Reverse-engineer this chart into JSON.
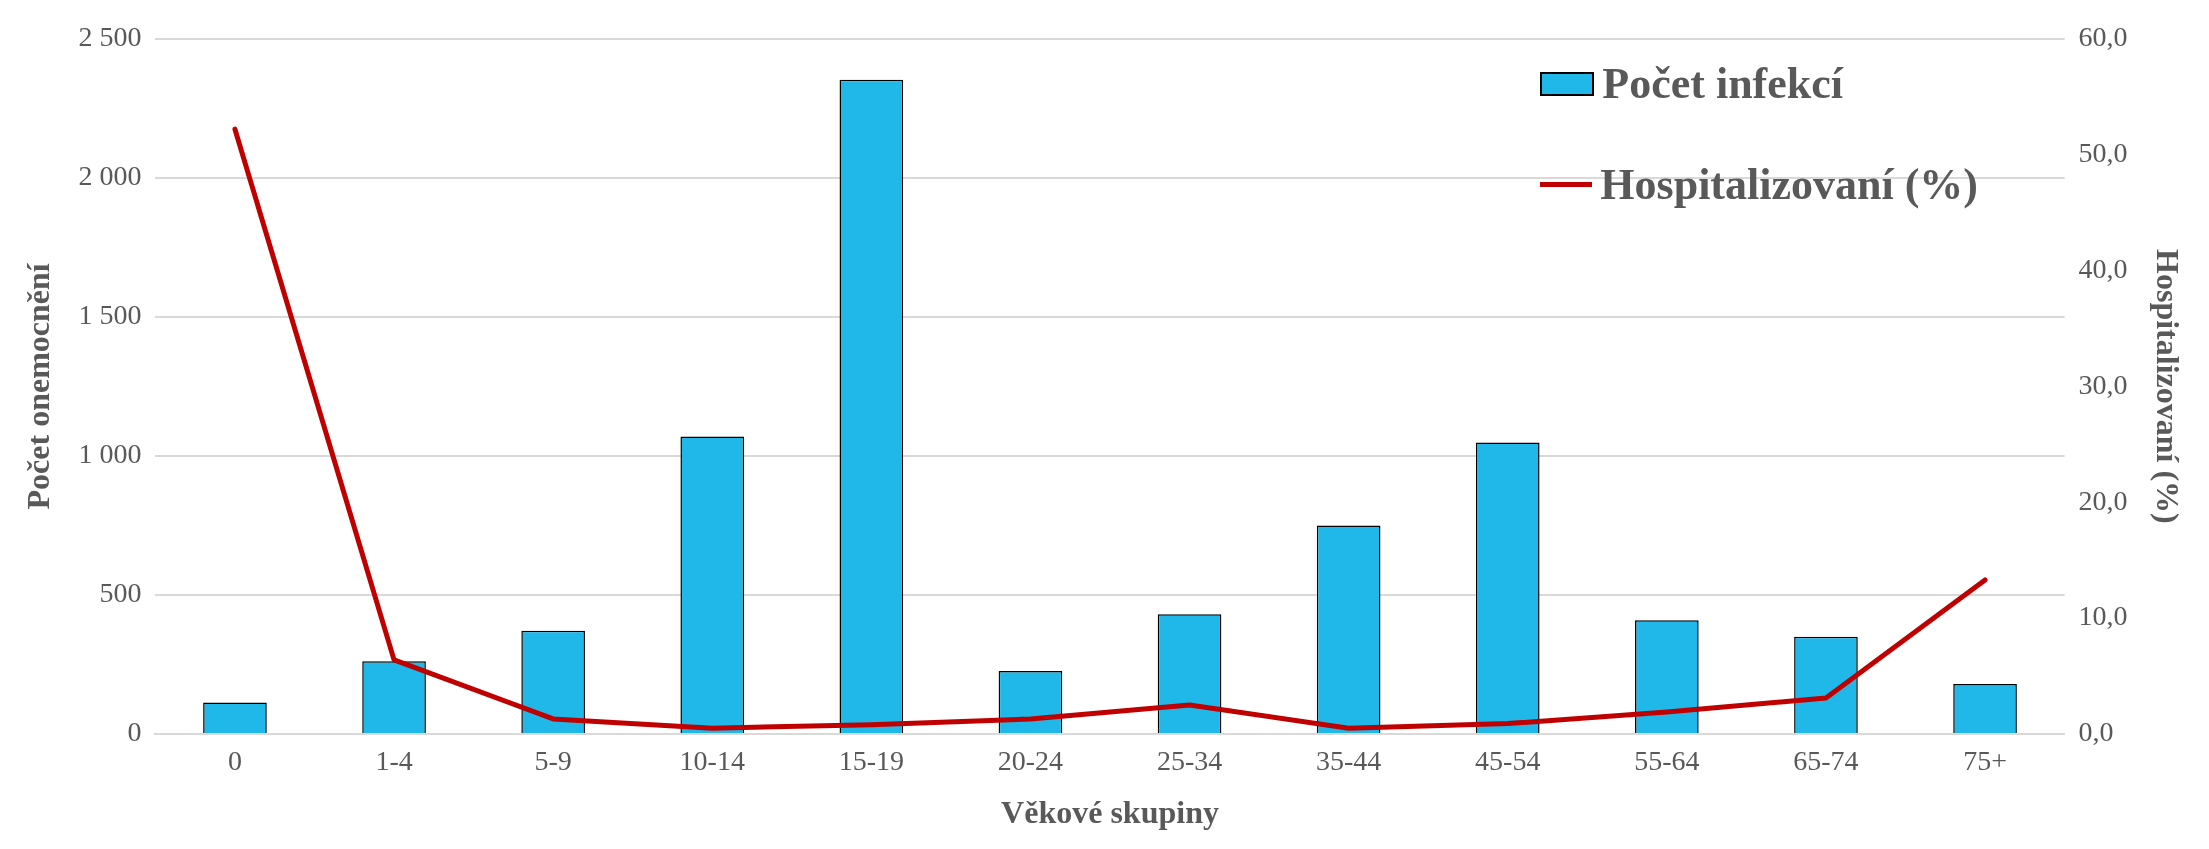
{
  "chart_data": {
    "type": "bar",
    "xlabel": "Věkové skupiny",
    "ylabel": "Počet onemocnění",
    "y2label": "Hospitalizovaní (%)",
    "categories": [
      "0",
      "1-4",
      "5-9",
      "10-14",
      "15-19",
      "20-24",
      "25-34",
      "35-44",
      "45-54",
      "55-64",
      "65-74",
      "75+"
    ],
    "series": [
      {
        "name": "Počet infekcí",
        "color": "#20b8e8",
        "values": [
          113,
          262,
          371,
          1070,
          2353,
          227,
          431,
          750,
          1048,
          409,
          350,
          180
        ]
      },
      {
        "name": "Hospitalizovaní (%)",
        "type": "line",
        "axis": "y2",
        "color": "#c00000",
        "values": [
          52.2,
          6.4,
          1.3,
          0.5,
          0.8,
          1.3,
          2.5,
          0.5,
          0.9,
          1.9,
          3.1,
          13.3
        ]
      }
    ],
    "ylim": [
      0,
      2500
    ],
    "yticks": [
      0,
      500,
      {
        "value": 1000,
        "label": "1 000"
      },
      {
        "value": 1500,
        "label": "1 500"
      },
      {
        "value": 2000,
        "label": "2 000"
      },
      {
        "value": 2500,
        "label": "2 500"
      }
    ],
    "y2lim": [
      0,
      60
    ],
    "y2ticks": [
      {
        "value": 0,
        "label": "0,0"
      },
      {
        "value": 10,
        "label": "10,0"
      },
      {
        "value": 20,
        "label": "20,0"
      },
      {
        "value": 30,
        "label": "30,0"
      },
      {
        "value": 40,
        "label": "40,0"
      },
      {
        "value": 50,
        "label": "50,0"
      },
      {
        "value": 60,
        "label": "60,0"
      }
    ],
    "grid": "y",
    "legend": "top right",
    "marker": "none",
    "line_style": "solid"
  }
}
